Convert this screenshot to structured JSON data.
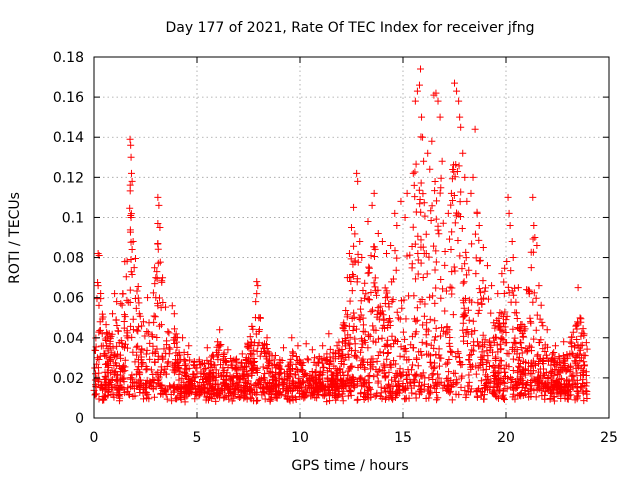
{
  "chart_data": {
    "type": "scatter",
    "title": "Day 177 of 2021, Rate Of TEC Index for receiver jfng",
    "xlabel": "GPS time / hours",
    "ylabel": "ROTI / TECUs",
    "xlim": [
      0,
      25
    ],
    "ylim": [
      0,
      0.18
    ],
    "xticks": [
      0,
      5,
      10,
      15,
      20,
      25
    ],
    "xtick_labels": [
      "0",
      "5",
      "10",
      "15",
      "20",
      "25"
    ],
    "yticks": [
      0,
      0.02,
      0.04,
      0.06,
      0.08,
      0.1,
      0.12,
      0.14,
      0.16,
      0.18
    ],
    "ytick_labels": [
      "0",
      "0.02",
      "0.04",
      "0.06",
      "0.08",
      "0.1",
      "0.12",
      "0.14",
      "0.16",
      "0.18"
    ],
    "grid": true,
    "marker": "+",
    "color": "#ff0000",
    "series": [
      {
        "name": "ROTI",
        "points": [
          [
            0.2,
            0.082
          ],
          [
            0.25,
            0.081
          ],
          [
            0.2,
            0.066
          ],
          [
            0.3,
            0.048
          ],
          [
            0.4,
            0.042
          ],
          [
            0.6,
            0.036
          ],
          [
            0.9,
            0.052
          ],
          [
            1.0,
            0.062
          ],
          [
            1.1,
            0.058
          ],
          [
            1.3,
            0.057
          ],
          [
            1.75,
            0.139
          ],
          [
            1.78,
            0.136
          ],
          [
            1.8,
            0.13
          ],
          [
            1.82,
            0.122
          ],
          [
            1.85,
            0.118
          ],
          [
            1.78,
            0.101
          ],
          [
            1.8,
            0.1
          ],
          [
            1.9,
            0.088
          ],
          [
            1.85,
            0.084
          ],
          [
            1.8,
            0.079
          ],
          [
            1.95,
            0.075
          ],
          [
            2.2,
            0.052
          ],
          [
            2.4,
            0.048
          ],
          [
            2.6,
            0.06
          ],
          [
            3.1,
            0.11
          ],
          [
            3.15,
            0.106
          ],
          [
            3.1,
            0.097
          ],
          [
            3.2,
            0.095
          ],
          [
            3.1,
            0.087
          ],
          [
            3.05,
            0.073
          ],
          [
            3.0,
            0.07
          ],
          [
            2.95,
            0.067
          ],
          [
            3.0,
            0.06
          ],
          [
            3.1,
            0.056
          ],
          [
            3.8,
            0.056
          ],
          [
            3.9,
            0.052
          ],
          [
            4.3,
            0.04
          ],
          [
            4.6,
            0.036
          ],
          [
            5.5,
            0.035
          ],
          [
            6.0,
            0.038
          ],
          [
            6.1,
            0.044
          ],
          [
            6.5,
            0.034
          ],
          [
            7.2,
            0.032
          ],
          [
            7.9,
            0.068
          ],
          [
            7.95,
            0.066
          ],
          [
            7.9,
            0.062
          ],
          [
            7.85,
            0.058
          ],
          [
            8.0,
            0.05
          ],
          [
            8.4,
            0.04
          ],
          [
            9.2,
            0.035
          ],
          [
            9.6,
            0.04
          ],
          [
            9.9,
            0.036
          ],
          [
            10.3,
            0.037
          ],
          [
            10.6,
            0.034
          ],
          [
            11.1,
            0.036
          ],
          [
            11.4,
            0.042
          ],
          [
            11.8,
            0.036
          ],
          [
            12.3,
            0.07
          ],
          [
            12.4,
            0.082
          ],
          [
            12.5,
            0.095
          ],
          [
            12.6,
            0.105
          ],
          [
            12.75,
            0.122
          ],
          [
            12.8,
            0.118
          ],
          [
            12.9,
            0.088
          ],
          [
            13.0,
            0.08
          ],
          [
            13.3,
            0.098
          ],
          [
            13.5,
            0.106
          ],
          [
            13.6,
            0.112
          ],
          [
            13.8,
            0.092
          ],
          [
            14.0,
            0.088
          ],
          [
            14.2,
            0.082
          ],
          [
            14.4,
            0.086
          ],
          [
            14.6,
            0.102
          ],
          [
            14.7,
            0.096
          ],
          [
            14.9,
            0.108
          ],
          [
            15.1,
            0.1
          ],
          [
            15.2,
            0.112
          ],
          [
            15.5,
            0.122
          ],
          [
            15.6,
            0.158
          ],
          [
            15.7,
            0.163
          ],
          [
            15.8,
            0.166
          ],
          [
            15.85,
            0.174
          ],
          [
            15.9,
            0.15
          ],
          [
            15.95,
            0.14
          ],
          [
            16.0,
            0.128
          ],
          [
            16.2,
            0.132
          ],
          [
            16.3,
            0.124
          ],
          [
            16.4,
            0.138
          ],
          [
            16.5,
            0.161
          ],
          [
            16.6,
            0.162
          ],
          [
            16.7,
            0.158
          ],
          [
            16.8,
            0.15
          ],
          [
            16.9,
            0.128
          ],
          [
            17.2,
            0.102
          ],
          [
            17.35,
            0.112
          ],
          [
            17.5,
            0.167
          ],
          [
            17.6,
            0.163
          ],
          [
            17.7,
            0.158
          ],
          [
            17.75,
            0.15
          ],
          [
            17.8,
            0.145
          ],
          [
            17.9,
            0.132
          ],
          [
            18.0,
            0.12
          ],
          [
            18.1,
            0.108
          ],
          [
            18.3,
            0.112
          ],
          [
            18.4,
            0.12
          ],
          [
            18.5,
            0.144
          ],
          [
            18.6,
            0.102
          ],
          [
            18.7,
            0.096
          ],
          [
            18.9,
            0.085
          ],
          [
            19.1,
            0.076
          ],
          [
            19.3,
            0.066
          ],
          [
            19.6,
            0.062
          ],
          [
            19.8,
            0.072
          ],
          [
            20.1,
            0.11
          ],
          [
            20.15,
            0.102
          ],
          [
            20.2,
            0.096
          ],
          [
            20.3,
            0.088
          ],
          [
            20.35,
            0.08
          ],
          [
            20.6,
            0.065
          ],
          [
            21.0,
            0.064
          ],
          [
            21.3,
            0.11
          ],
          [
            21.35,
            0.096
          ],
          [
            21.4,
            0.09
          ],
          [
            21.5,
            0.086
          ],
          [
            21.6,
            0.066
          ],
          [
            22.0,
            0.044
          ],
          [
            22.4,
            0.036
          ],
          [
            22.8,
            0.038
          ],
          [
            23.1,
            0.032
          ],
          [
            23.5,
            0.065
          ],
          [
            23.8,
            0.026
          ]
        ]
      }
    ]
  }
}
